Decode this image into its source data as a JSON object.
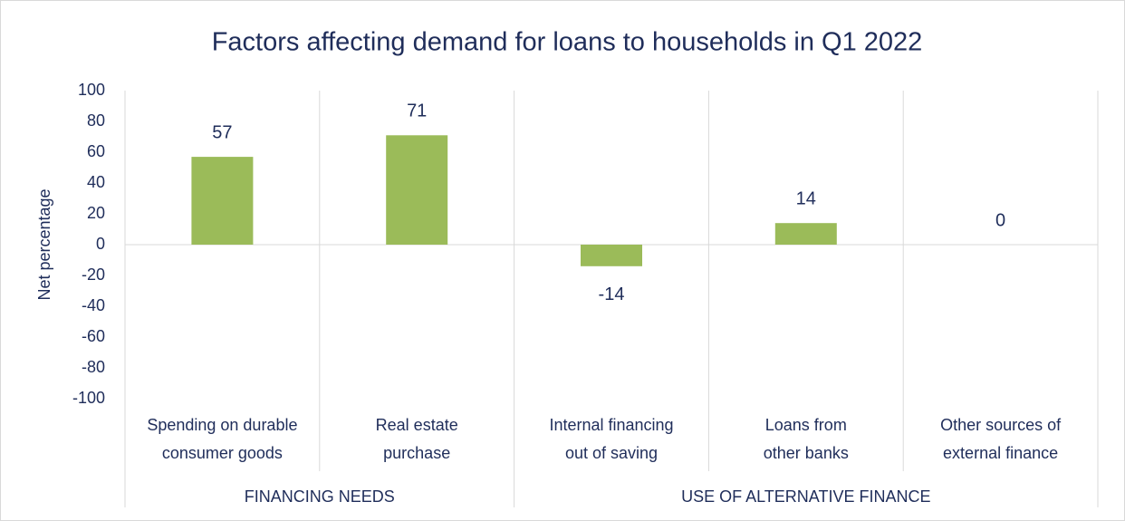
{
  "chart_data": {
    "type": "bar",
    "title": "Factors affecting demand for loans to households in Q1 2022",
    "y_label": "Net percentage",
    "groups": [
      {
        "name": "FINANCING NEEDS",
        "categories": [
          "Spending on durable consumer goods",
          "Real estate purchase"
        ],
        "values": [
          57,
          71
        ]
      },
      {
        "name": "USE OF ALTERNATIVE FINANCE",
        "categories": [
          "Internal financing out of saving",
          "Loans from other banks",
          "Other sources of external finance"
        ],
        "values": [
          -14,
          14,
          0
        ]
      }
    ],
    "color": "#9bbb59",
    "ylim": [
      -100,
      100
    ],
    "yticks": [
      -100,
      -80,
      -60,
      -40,
      -20,
      0,
      20,
      40,
      60,
      80,
      100
    ]
  }
}
